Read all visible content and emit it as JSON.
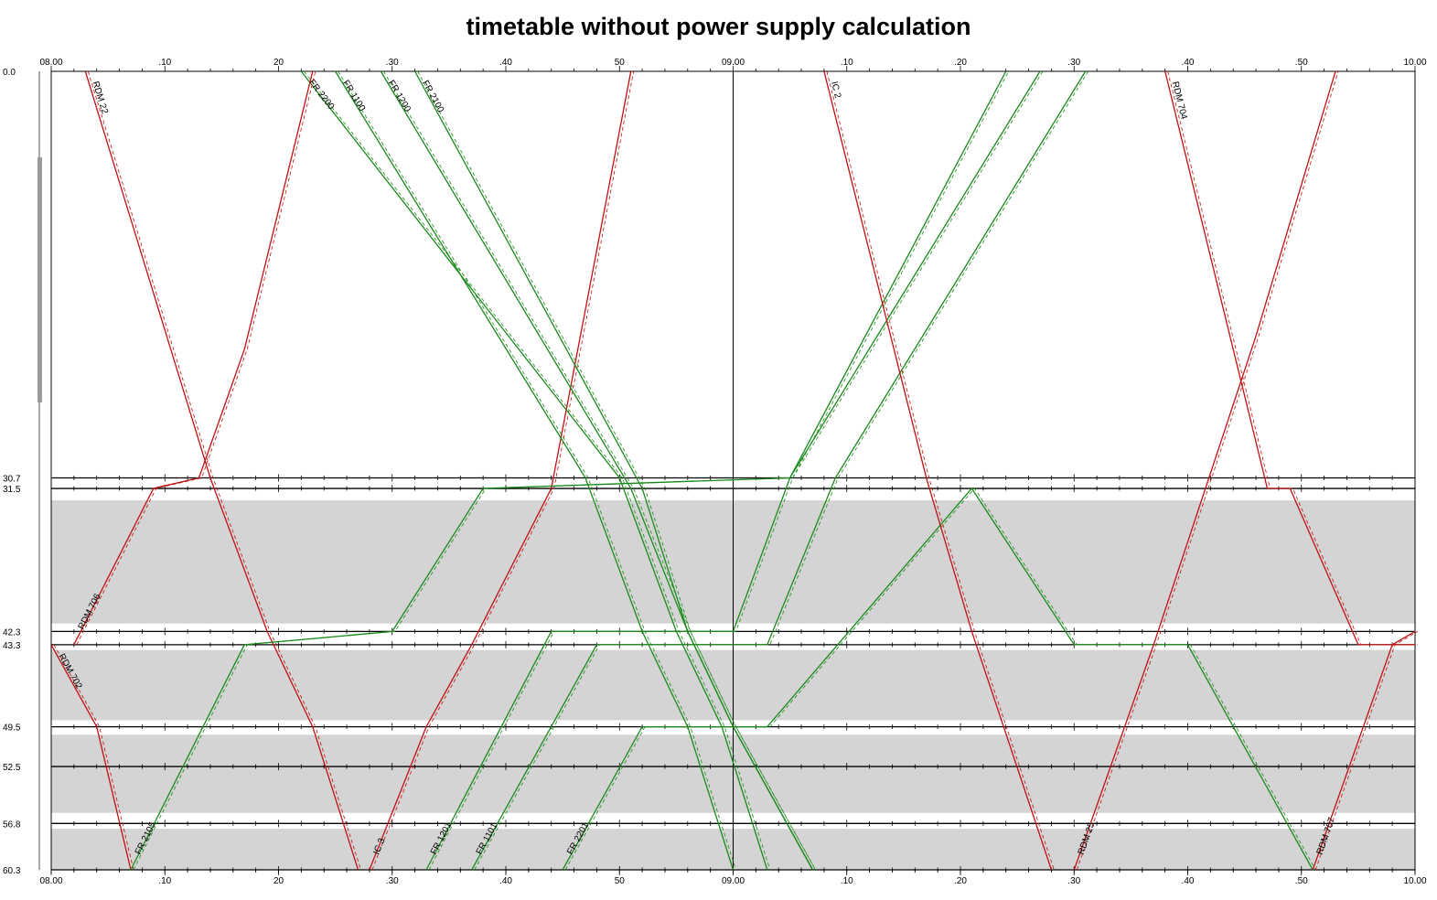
{
  "chart_data": {
    "type": "line",
    "title": "timetable without power supply calculation",
    "x_unit": "time (hh.mm)",
    "xlim": [
      "08.00",
      "10.00"
    ],
    "x_tick_labels": [
      "08.00",
      ".10",
      "20",
      ".30",
      ".40",
      "50",
      "09.00",
      ".10",
      ".20",
      ".30",
      ".40",
      ".50",
      "10.00"
    ],
    "y_unit": "km",
    "ylim": [
      0.0,
      60.3
    ],
    "y_tick_labels": [
      "0.0",
      "30.7",
      "31.5",
      "42.3",
      "43.3",
      "49.5",
      "52.5",
      "56.8",
      "60.3"
    ],
    "stations_km": [
      30.7,
      31.5,
      42.3,
      43.3,
      49.5,
      52.5,
      56.8,
      60.3
    ],
    "shaded_sections_km": [
      [
        32.4,
        41.7
      ],
      [
        43.7,
        49.0
      ],
      [
        50.1,
        56.0
      ],
      [
        57.2,
        60.3
      ]
    ],
    "colors": {
      "downward": "#c01010",
      "upward": "#1a8a1a",
      "grid": "#000000",
      "shade": "#d4d4d4"
    },
    "series": [
      {
        "name": "RDM 22",
        "color": "#c01010",
        "x": [
          "08.03",
          "08.14",
          "08.19",
          "08.23",
          "08.27"
        ],
        "y": [
          0.0,
          30.7,
          42.3,
          49.5,
          60.3
        ]
      },
      {
        "name": "IC 3",
        "color": "#c01010",
        "x": [
          "08.28",
          "08.33",
          "08.37",
          "08.44",
          "08.51"
        ],
        "y": [
          60.3,
          49.5,
          43.3,
          31.5,
          0.0
        ]
      },
      {
        "name": "FR 2200",
        "color": "#1a8a1a",
        "x": [
          "08.22",
          "08.50",
          "08.55",
          "08.59",
          "09.03"
        ],
        "y": [
          0.0,
          30.7,
          42.3,
          49.5,
          60.3
        ]
      },
      {
        "name": "FR 1100",
        "color": "#1a8a1a",
        "x": [
          "08.25",
          "08.47",
          "08.52",
          "08.56",
          "09.00"
        ],
        "y": [
          0.0,
          30.7,
          42.3,
          49.5,
          60.3
        ]
      },
      {
        "name": "FR 1200",
        "color": "#1a8a1a",
        "x": [
          "08.29",
          "08.51",
          "08.56",
          "09.00",
          "09.07"
        ],
        "y": [
          0.0,
          31.5,
          42.3,
          49.5,
          60.3
        ]
      },
      {
        "name": "FR 2100",
        "color": "#1a8a1a",
        "x": [
          "08.32",
          "08.52",
          "08.56",
          "09.00",
          "09.07"
        ],
        "y": [
          0.0,
          31.5,
          42.3,
          49.5,
          60.3
        ]
      },
      {
        "name": "RDM 706",
        "color": "#c01010",
        "x": [
          "08.02",
          "08.09",
          "08.13",
          "08.17",
          "08.23"
        ],
        "y": [
          43.3,
          31.5,
          30.7,
          21.0,
          0.0
        ]
      },
      {
        "name": "RDM 702",
        "color": "#c01010",
        "x": [
          "08.00",
          "08.04",
          "08.07"
        ],
        "y": [
          43.3,
          49.5,
          60.3
        ]
      },
      {
        "name": "FR 2105",
        "color": "#1a8a1a",
        "x": [
          "08.07",
          "08.17",
          "08.30",
          "08.38",
          "09.05",
          "09.24"
        ],
        "y": [
          60.3,
          43.3,
          42.3,
          31.5,
          30.7,
          0.0
        ]
      },
      {
        "name": "FR 1201",
        "color": "#1a8a1a",
        "x": [
          "08.33",
          "08.44",
          "09.00",
          "09.05",
          "09.27"
        ],
        "y": [
          60.3,
          42.3,
          42.3,
          30.7,
          0.0
        ]
      },
      {
        "name": "FR 1101",
        "color": "#1a8a1a",
        "x": [
          "08.37",
          "08.48",
          "09.03",
          "09.09",
          "09.31"
        ],
        "y": [
          60.3,
          43.3,
          43.3,
          30.7,
          0.0
        ]
      },
      {
        "name": "FR 2201",
        "color": "#1a8a1a",
        "x": [
          "08.45",
          "08.52",
          "09.03",
          "09.21",
          "09.30",
          "09.40",
          "09.51"
        ],
        "y": [
          60.3,
          49.5,
          49.5,
          31.5,
          43.3,
          43.3,
          60.3
        ]
      },
      {
        "name": "IC 2",
        "color": "#c01010",
        "x": [
          "09.08",
          "09.17",
          "09.21",
          "09.28"
        ],
        "y": [
          0.0,
          30.7,
          42.3,
          60.3
        ]
      },
      {
        "name": "RDM 25",
        "color": "#c01010",
        "x": [
          "09.30",
          "09.37",
          "09.46",
          "09.53"
        ],
        "y": [
          60.3,
          43.3,
          20.0,
          0.0
        ]
      },
      {
        "name": "RDM 704",
        "color": "#c01010",
        "x": [
          "09.38",
          "09.47",
          "09.49",
          "09.55",
          "10.00"
        ],
        "y": [
          0.0,
          31.5,
          31.5,
          43.3,
          43.3
        ]
      },
      {
        "name": "RDM 707",
        "color": "#c01010",
        "x": [
          "09.51",
          "09.58",
          "10.00"
        ],
        "y": [
          60.3,
          43.3,
          42.3
        ]
      }
    ]
  }
}
